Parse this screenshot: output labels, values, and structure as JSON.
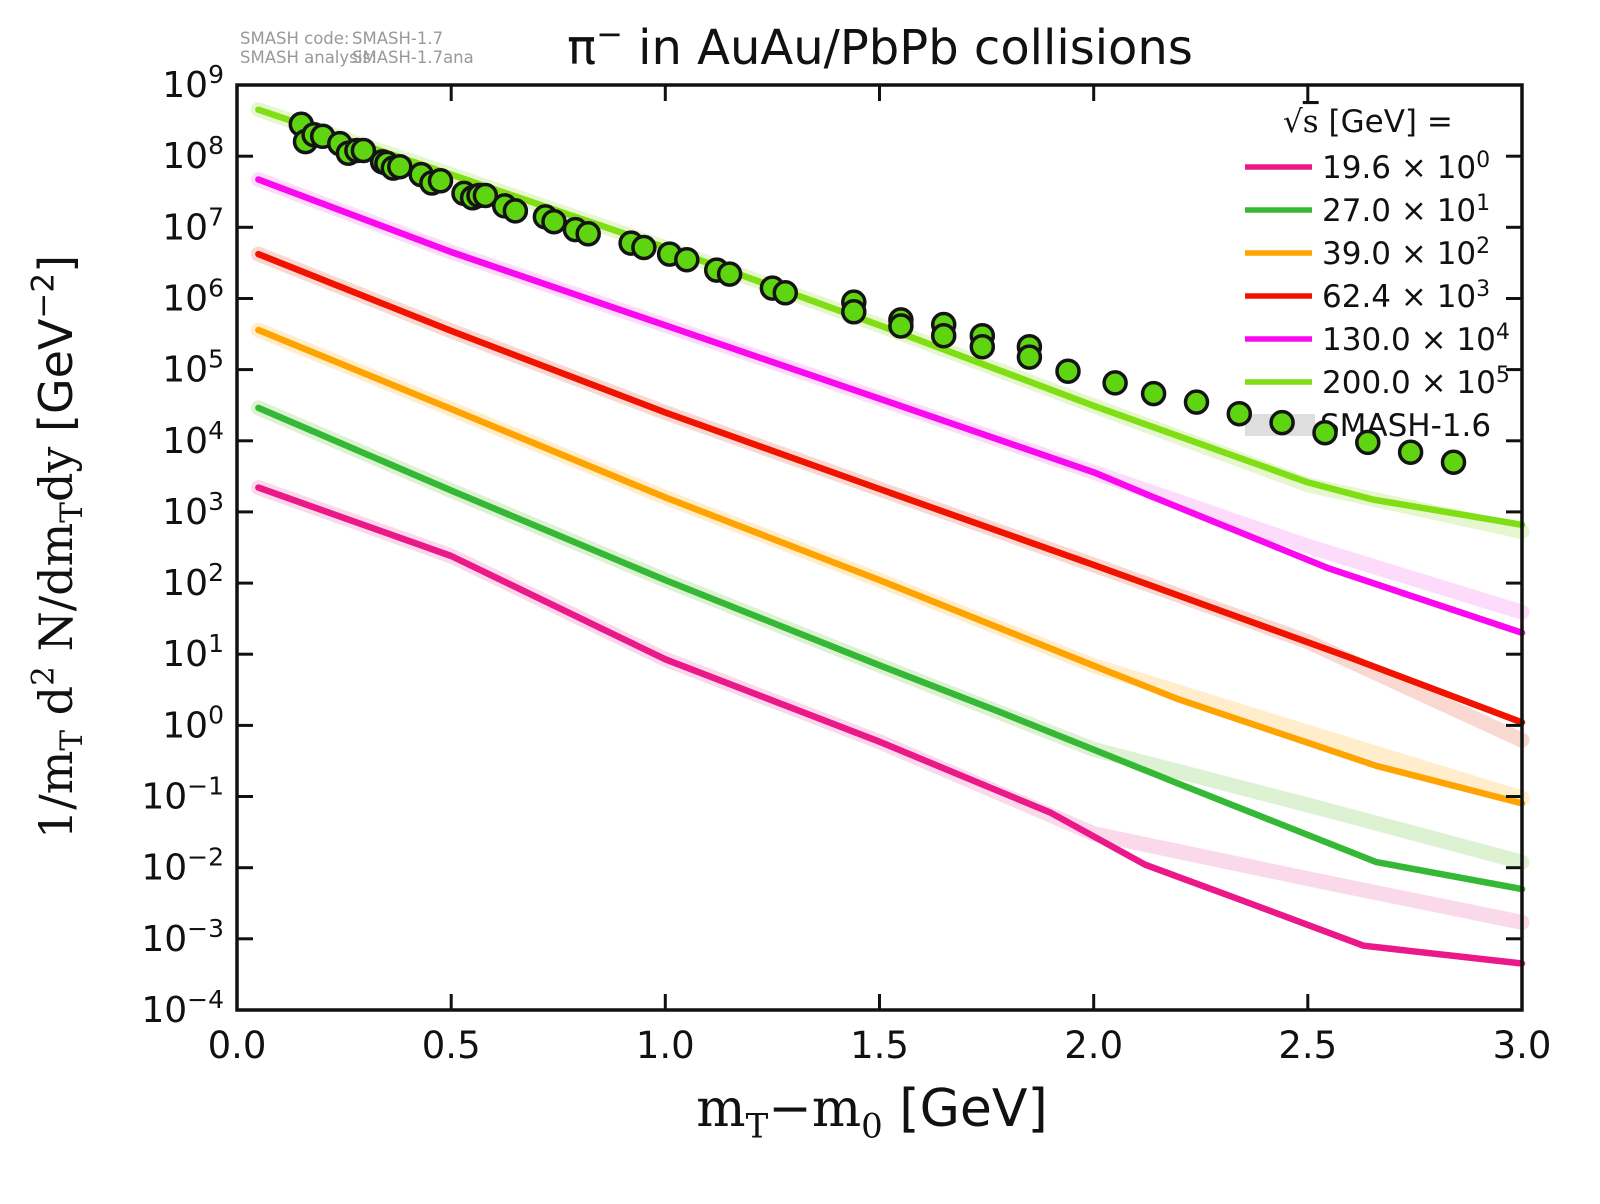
{
  "annotation": {
    "code_label": "SMASH code:",
    "code_value": "SMASH-1.7",
    "analysis_label": "SMASH analysis:",
    "analysis_value": "SMASH-1.7ana",
    "color": "#999999"
  },
  "title_parts": [
    {
      "t": "π"
    },
    {
      "t": "−",
      "s": "sup"
    },
    {
      "t": " in AuAu/PbPb collisions"
    }
  ],
  "axes": {
    "xlabel_parts": [
      {
        "t": "m"
      },
      {
        "t": "T",
        "s": "sub"
      },
      {
        "t": "−m"
      },
      {
        "t": "0",
        "s": "sub"
      },
      {
        "t": " [GeV]",
        "f": "sans"
      }
    ],
    "ylabel_parts": [
      {
        "t": "1/m"
      },
      {
        "t": "T",
        "s": "sub"
      },
      {
        "t": " d"
      },
      {
        "t": "2",
        "s": "sup"
      },
      {
        "t": " N/dm"
      },
      {
        "t": "T",
        "s": "sub"
      },
      {
        "t": "dy  "
      },
      {
        "t": "[GeV",
        "f": "sans"
      },
      {
        "t": "−2",
        "s": "sup",
        "f": "sans"
      },
      {
        "t": "]",
        "f": "sans"
      }
    ],
    "x_ticks": [
      {
        "v": 0.0,
        "label": "0.0"
      },
      {
        "v": 0.5,
        "label": "0.5"
      },
      {
        "v": 1.0,
        "label": "1.0"
      },
      {
        "v": 1.5,
        "label": "1.5"
      },
      {
        "v": 2.0,
        "label": "2.0"
      },
      {
        "v": 2.5,
        "label": "2.5"
      },
      {
        "v": 3.0,
        "label": "3.0"
      }
    ],
    "y_ticks": [
      {
        "exp": "9"
      },
      {
        "exp": "8"
      },
      {
        "exp": "7"
      },
      {
        "exp": "6"
      },
      {
        "exp": "5"
      },
      {
        "exp": "4"
      },
      {
        "exp": "3"
      },
      {
        "exp": "2"
      },
      {
        "exp": "1"
      },
      {
        "exp": "0"
      },
      {
        "exp": "−1"
      },
      {
        "exp": "−2"
      },
      {
        "exp": "−3"
      },
      {
        "exp": "−4"
      }
    ],
    "xlim": [
      0,
      3
    ],
    "ylog10_lim": [
      -4,
      9
    ],
    "frame_color": "#111111"
  },
  "legend": {
    "title_parts": [
      {
        "t": "√",
        "f": "serif"
      },
      {
        "t": "s",
        "f": "serif",
        "deco": "overline"
      },
      {
        "t": "  [GeV] ="
      }
    ],
    "smash16": {
      "label": "SMASH-1.6",
      "color": "#DEDEDE"
    }
  },
  "chart_data": {
    "type": "line+scatter",
    "x_axis": "mT − m0 [GeV], linear 0 to 3",
    "y_axis": "1/mT d2N/dmTdy [GeV^-2], log scale 1e-4 to 1e9",
    "grid": false,
    "legend_position": "upper right, frameless",
    "series": [
      {
        "name": "19.6",
        "legend_value": "19.6 × 10",
        "legend_exp": "0",
        "color": "#EA1889",
        "band_color": "#FAD9EB",
        "line": [
          [
            0.05,
            2200
          ],
          [
            0.5,
            240
          ],
          [
            1.0,
            8.5
          ],
          [
            1.5,
            0.59
          ],
          [
            1.9,
            0.059
          ],
          [
            2.12,
            0.011
          ],
          [
            2.35,
            0.0034
          ],
          [
            2.63,
            0.0008
          ],
          [
            3.0,
            0.00045
          ]
        ],
        "band": [
          [
            0.05,
            2200
          ],
          [
            0.5,
            240
          ],
          [
            1.0,
            8.5
          ],
          [
            1.5,
            0.59
          ],
          [
            2.0,
            0.03
          ],
          [
            2.5,
            0.007
          ],
          [
            3.0,
            0.0017
          ]
        ]
      },
      {
        "name": "27.0",
        "legend_value": "27.0 × 10",
        "legend_exp": "1",
        "color": "#35B835",
        "band_color": "#DCF2D3",
        "line": [
          [
            0.05,
            29000
          ],
          [
            0.5,
            2000
          ],
          [
            1.0,
            110
          ],
          [
            1.5,
            7.0
          ],
          [
            1.78,
            1.55
          ],
          [
            2.2,
            0.15
          ],
          [
            2.66,
            0.012
          ],
          [
            3.0,
            0.005
          ]
        ],
        "band": [
          [
            0.05,
            29000
          ],
          [
            0.5,
            2000
          ],
          [
            1.0,
            110
          ],
          [
            1.5,
            7.0
          ],
          [
            2.0,
            0.46
          ],
          [
            2.5,
            0.076
          ],
          [
            3.0,
            0.012
          ]
        ]
      },
      {
        "name": "39.0",
        "legend_value": "39.0 × 10",
        "legend_exp": "2",
        "color": "#FFA301",
        "band_color": "#FFEDCC",
        "line": [
          [
            0.05,
            360000
          ],
          [
            0.5,
            28000
          ],
          [
            1.0,
            1600
          ],
          [
            1.5,
            110
          ],
          [
            2.0,
            6.9
          ],
          [
            2.2,
            2.3
          ],
          [
            2.66,
            0.27
          ],
          [
            3.0,
            0.08
          ]
        ],
        "band": [
          [
            0.05,
            360000
          ],
          [
            0.5,
            28000
          ],
          [
            1.0,
            1600
          ],
          [
            1.5,
            110
          ],
          [
            2.0,
            6.9
          ],
          [
            2.5,
            0.8
          ],
          [
            3.0,
            0.095
          ]
        ]
      },
      {
        "name": "62.4",
        "legend_value": "62.4 × 10",
        "legend_exp": "3",
        "color": "#F01300",
        "band_color": "#FAD8D2",
        "line": [
          [
            0.05,
            4200000
          ],
          [
            0.5,
            350000
          ],
          [
            1.0,
            25000
          ],
          [
            1.5,
            2100
          ],
          [
            2.0,
            180
          ],
          [
            2.6,
            8.9
          ],
          [
            3.0,
            1.1
          ]
        ],
        "band": [
          [
            0.05,
            4200000
          ],
          [
            0.5,
            350000
          ],
          [
            1.0,
            25000
          ],
          [
            1.5,
            2100
          ],
          [
            2.0,
            180
          ],
          [
            2.5,
            15
          ],
          [
            3.0,
            0.62
          ]
        ]
      },
      {
        "name": "130.0",
        "legend_value": "130.0 × 10",
        "legend_exp": "4",
        "color": "#F908F0",
        "band_color": "#FCDCFA",
        "line": [
          [
            0.05,
            47000000
          ],
          [
            0.5,
            4500000
          ],
          [
            1.0,
            420000
          ],
          [
            1.5,
            39000
          ],
          [
            2.0,
            3600
          ],
          [
            2.13,
            1700
          ],
          [
            2.55,
            160
          ],
          [
            3.0,
            20
          ]
        ],
        "band": [
          [
            0.05,
            47000000
          ],
          [
            0.5,
            4500000
          ],
          [
            1.0,
            420000
          ],
          [
            1.5,
            39000
          ],
          [
            2.0,
            3600
          ],
          [
            2.5,
            330
          ],
          [
            3.0,
            39
          ]
        ]
      },
      {
        "name": "200.0",
        "legend_value": "200.0 × 10",
        "legend_exp": "5",
        "color": "#7FDE14",
        "band_color": "#E6F7CF",
        "line": [
          [
            0.05,
            450000000
          ],
          [
            0.5,
            55000000
          ],
          [
            1.0,
            5200000
          ],
          [
            1.5,
            420000
          ],
          [
            2.0,
            31000
          ],
          [
            2.5,
            2600
          ],
          [
            2.65,
            1500
          ],
          [
            3.0,
            660
          ]
        ],
        "band": [
          [
            0.05,
            450000000
          ],
          [
            0.5,
            55000000
          ],
          [
            1.0,
            5200000
          ],
          [
            1.5,
            420000
          ],
          [
            2.0,
            31000
          ],
          [
            2.5,
            2400
          ],
          [
            3.0,
            530
          ]
        ]
      }
    ],
    "scatter": {
      "name": "experimental-data-points",
      "fill": "#5FD411",
      "edge": "#141414",
      "points": [
        [
          0.15,
          280000000.0
        ],
        [
          0.16,
          160000000.0
        ],
        [
          0.18,
          200000000.0
        ],
        [
          0.2,
          190000000.0
        ],
        [
          0.24,
          150000000.0
        ],
        [
          0.26,
          110000000.0
        ],
        [
          0.28,
          120000000.0
        ],
        [
          0.295,
          120000000.0
        ],
        [
          0.34,
          83000000.0
        ],
        [
          0.35,
          79000000.0
        ],
        [
          0.365,
          68000000.0
        ],
        [
          0.38,
          71000000.0
        ],
        [
          0.43,
          55000000.0
        ],
        [
          0.455,
          42000000.0
        ],
        [
          0.475,
          45000000.0
        ],
        [
          0.53,
          30000000.0
        ],
        [
          0.55,
          26000000.0
        ],
        [
          0.565,
          28000000.0
        ],
        [
          0.58,
          28000000.0
        ],
        [
          0.625,
          20000000.0
        ],
        [
          0.65,
          17000000.0
        ],
        [
          0.72,
          14000000.0
        ],
        [
          0.74,
          12000000.0
        ],
        [
          0.79,
          9300000.0
        ],
        [
          0.82,
          8100000.0
        ],
        [
          0.92,
          6000000.0
        ],
        [
          0.95,
          5200000.0
        ],
        [
          1.01,
          4200000.0
        ],
        [
          1.05,
          3500000.0
        ],
        [
          1.12,
          2500000.0
        ],
        [
          1.15,
          2200000.0
        ],
        [
          1.25,
          1400000.0
        ],
        [
          1.28,
          1200000.0
        ],
        [
          1.44,
          890000.0
        ],
        [
          1.44,
          650000.0
        ],
        [
          1.55,
          500000.0
        ],
        [
          1.55,
          410000.0
        ],
        [
          1.65,
          430000.0
        ],
        [
          1.65,
          300000.0
        ],
        [
          1.74,
          300000.0
        ],
        [
          1.74,
          210000.0
        ],
        [
          1.85,
          210000.0
        ],
        [
          1.85,
          150000.0
        ],
        [
          1.94,
          95000.0
        ],
        [
          2.05,
          65000.0
        ],
        [
          2.14,
          46000.0
        ],
        [
          2.24,
          35000.0
        ],
        [
          2.34,
          24000.0
        ],
        [
          2.44,
          18000.0
        ],
        [
          2.54,
          13000.0
        ],
        [
          2.64,
          9500.0
        ],
        [
          2.74,
          6900.0
        ],
        [
          2.84,
          5000.0
        ]
      ]
    }
  }
}
